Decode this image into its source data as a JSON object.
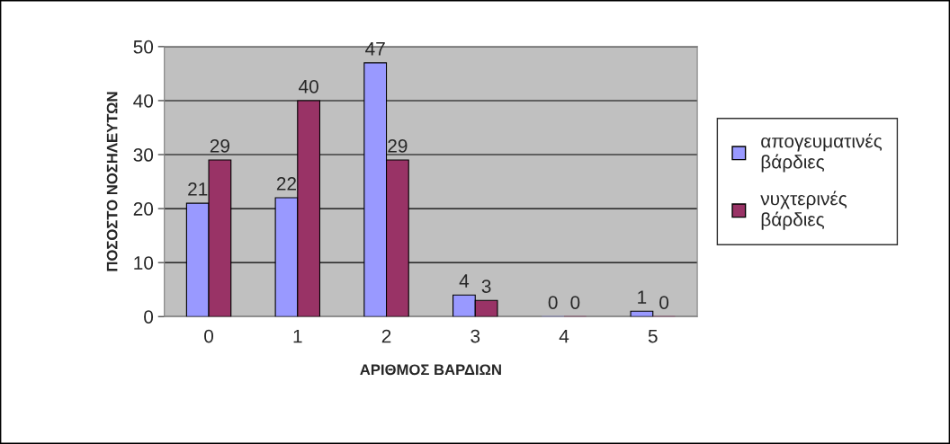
{
  "chart_data": {
    "type": "bar",
    "xlabel": "ΑΡΙΘΜΟΣ ΒΑΡΔΙΩΝ",
    "ylabel": "ΠΟΣΟΣΤΟ ΝΟΣΗΛΕΥΤΩΝ",
    "categories": [
      "0",
      "1",
      "2",
      "3",
      "4",
      "5"
    ],
    "series": [
      {
        "name": "απογευματινές βάρδιες",
        "color": "#9999ff",
        "values": [
          21,
          22,
          47,
          4,
          0,
          1
        ]
      },
      {
        "name": "νυχτερινές βάρδιες",
        "color": "#993366",
        "values": [
          29,
          40,
          29,
          3,
          0,
          0
        ]
      }
    ],
    "ylim": [
      0,
      50
    ],
    "yticks": [
      0,
      10,
      20,
      30,
      40,
      50
    ],
    "grid": "y",
    "legend": "right",
    "data_labels": true
  }
}
